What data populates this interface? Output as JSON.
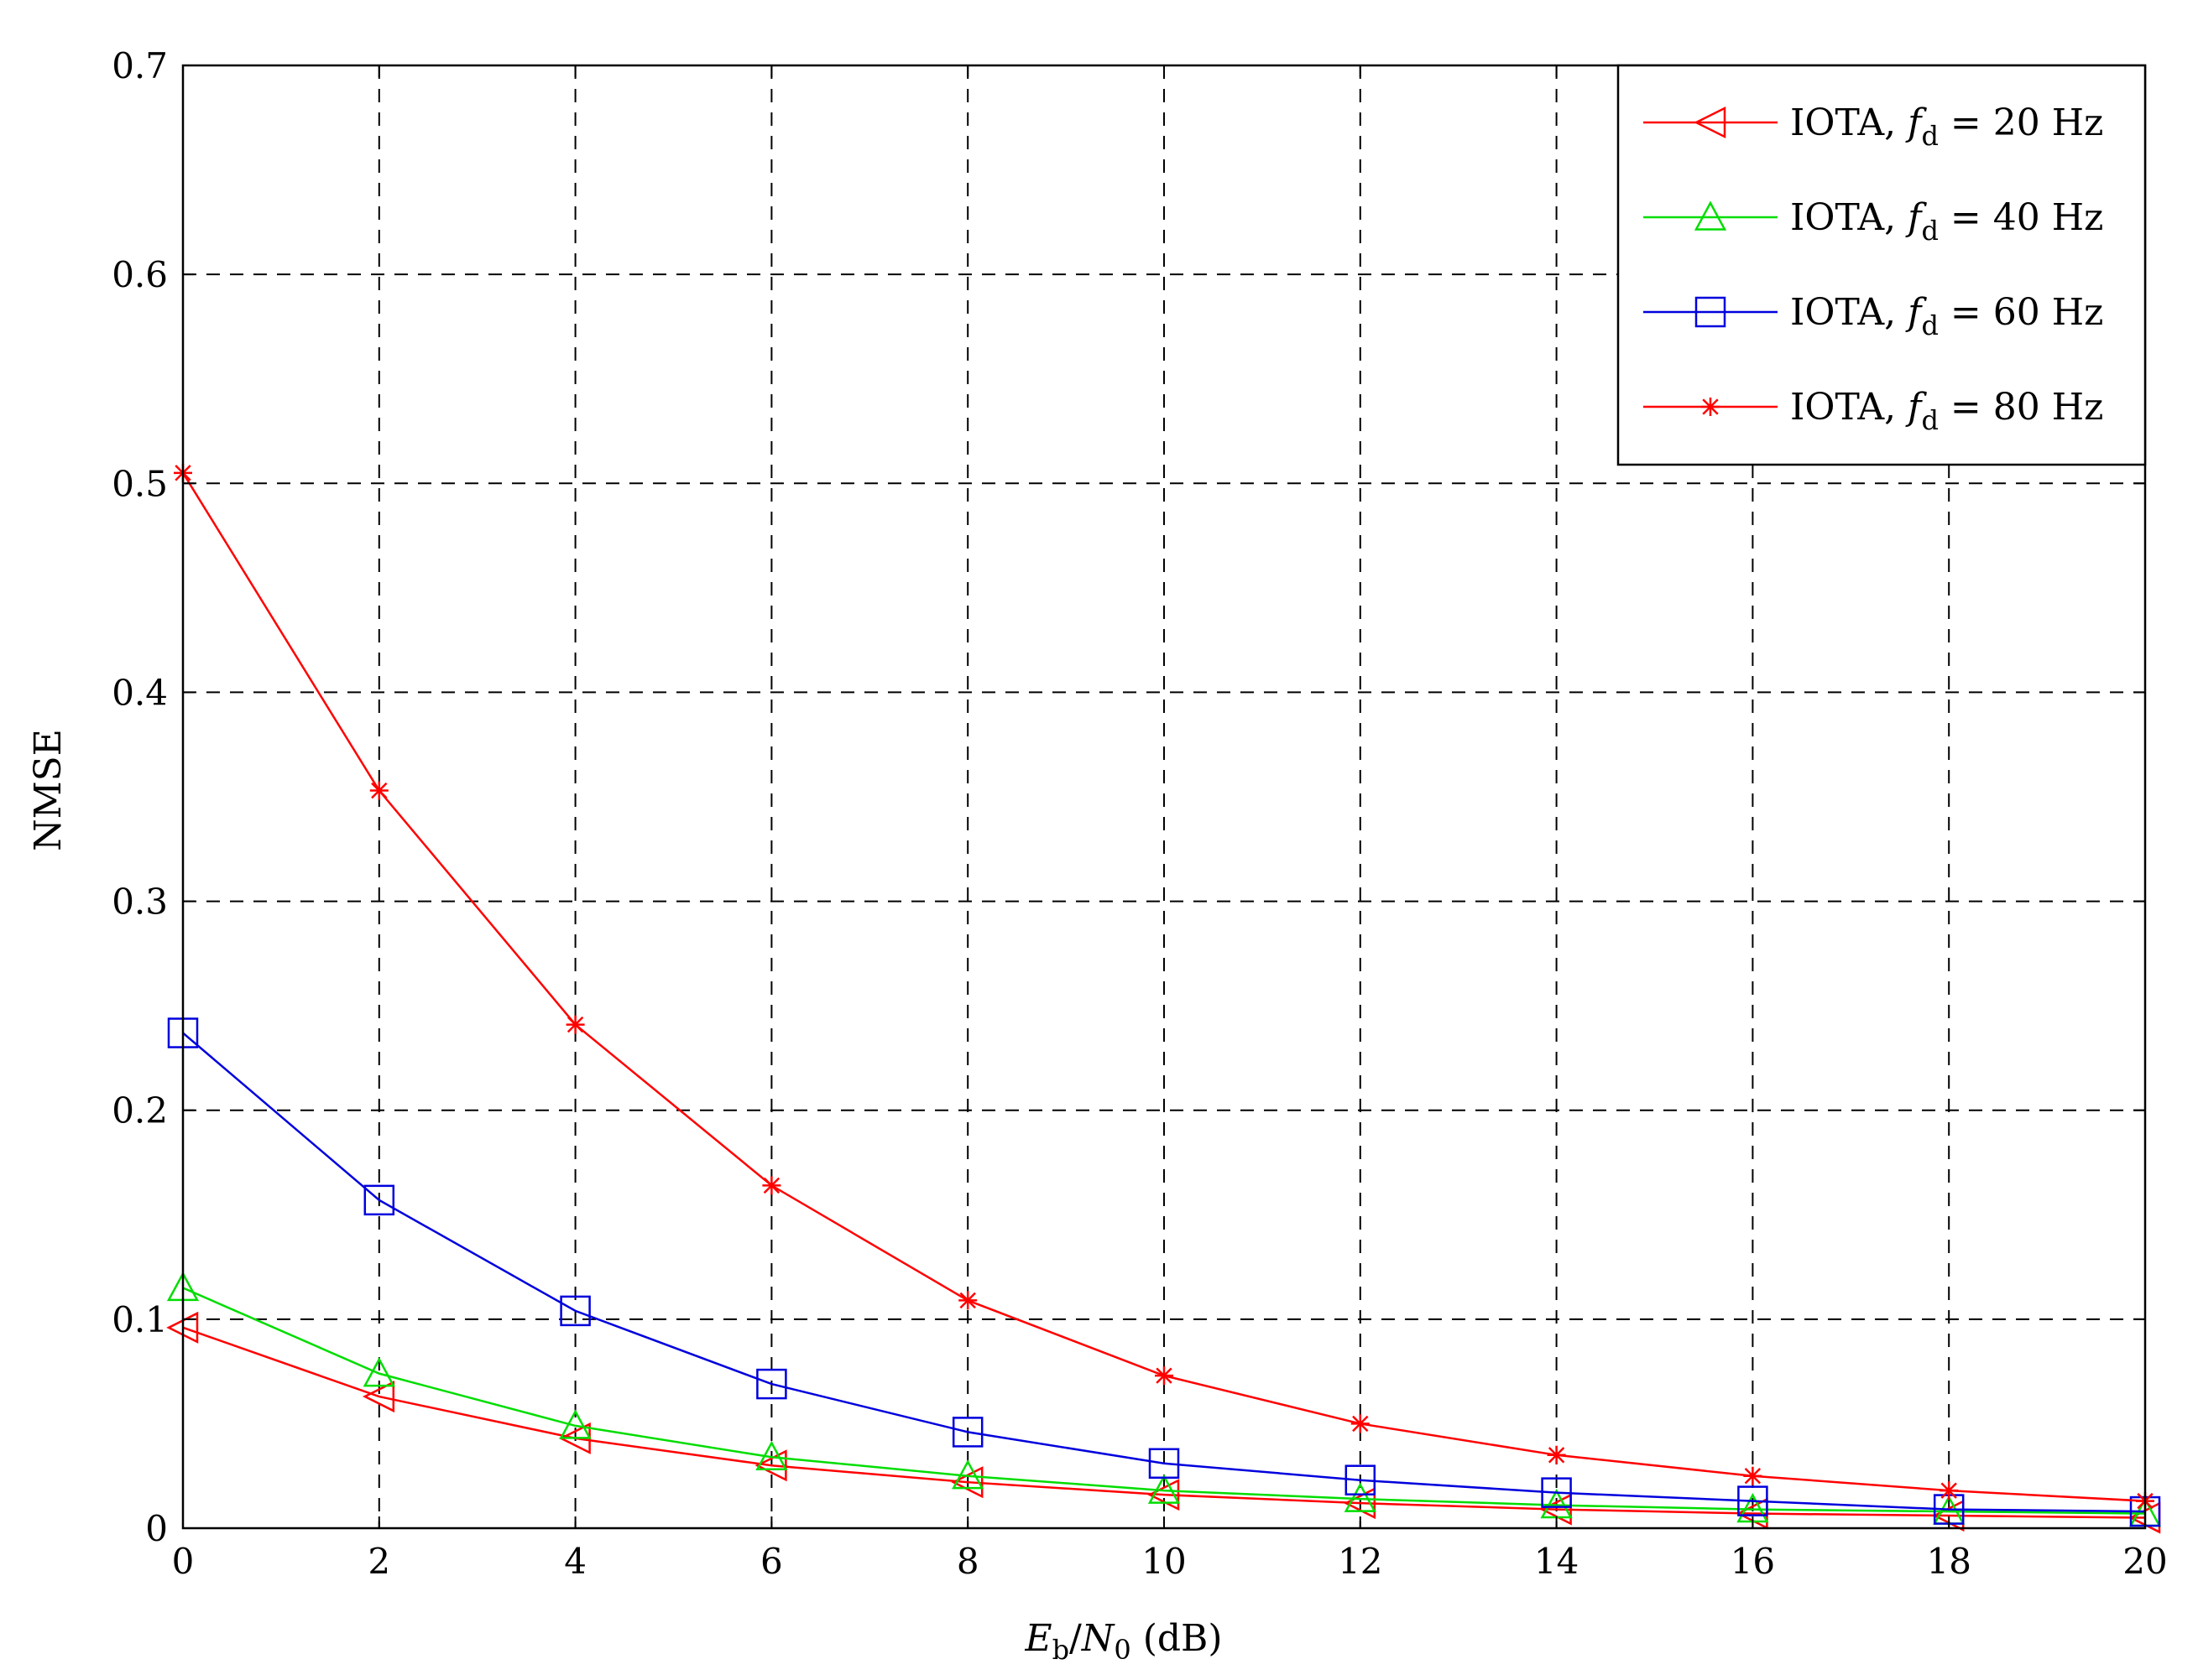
{
  "chart_data": {
    "type": "line",
    "title": "",
    "xlabel": "E_b/N_0 (dB)",
    "xlabel_parts": {
      "main1": "E",
      "sub1": "b",
      "sep": "/",
      "main2": "N",
      "sub2": "0",
      "tail": " (dB)"
    },
    "ylabel": "NMSE",
    "xlim": [
      0,
      20
    ],
    "ylim": [
      0,
      0.7
    ],
    "xticks": [
      0,
      2,
      4,
      6,
      8,
      10,
      12,
      14,
      16,
      18,
      20
    ],
    "yticks": [
      0,
      0.1,
      0.2,
      0.3,
      0.4,
      0.5,
      0.6,
      0.7
    ],
    "ytick_labels": [
      "0",
      "0.1",
      "0.2",
      "0.3",
      "0.4",
      "0.5",
      "0.6",
      "0.7"
    ],
    "grid": true,
    "legend_position": "top-right",
    "x": [
      0,
      2,
      4,
      6,
      8,
      10,
      12,
      14,
      16,
      18,
      20
    ],
    "series": [
      {
        "name": "IOTA, f_d = 20 Hz",
        "legend_parts": {
          "prefix": "IOTA, ",
          "var": "f",
          "sub": "d",
          "suffix": " = 20 Hz"
        },
        "color": "#ff0000",
        "marker": "triangle-left",
        "values": [
          0.096,
          0.063,
          0.043,
          0.03,
          0.022,
          0.016,
          0.012,
          0.009,
          0.007,
          0.006,
          0.005
        ]
      },
      {
        "name": "IOTA, f_d = 40 Hz",
        "legend_parts": {
          "prefix": "IOTA, ",
          "var": "f",
          "sub": "d",
          "suffix": " = 40 Hz"
        },
        "color": "#00dd00",
        "marker": "triangle-up",
        "values": [
          0.115,
          0.074,
          0.049,
          0.034,
          0.025,
          0.018,
          0.014,
          0.011,
          0.009,
          0.008,
          0.007
        ]
      },
      {
        "name": "IOTA, f_d = 60 Hz",
        "legend_parts": {
          "prefix": "IOTA, ",
          "var": "f",
          "sub": "d",
          "suffix": " = 60 Hz"
        },
        "color": "#0000dd",
        "marker": "square",
        "values": [
          0.237,
          0.157,
          0.104,
          0.069,
          0.046,
          0.031,
          0.023,
          0.017,
          0.013,
          0.009,
          0.008
        ]
      },
      {
        "name": "IOTA, f_d = 80 Hz",
        "legend_parts": {
          "prefix": "IOTA, ",
          "var": "f",
          "sub": "d",
          "suffix": " = 80 Hz"
        },
        "color": "#ff0000",
        "marker": "asterisk",
        "values": [
          0.505,
          0.353,
          0.241,
          0.164,
          0.109,
          0.073,
          0.05,
          0.035,
          0.025,
          0.018,
          0.013
        ]
      }
    ]
  }
}
